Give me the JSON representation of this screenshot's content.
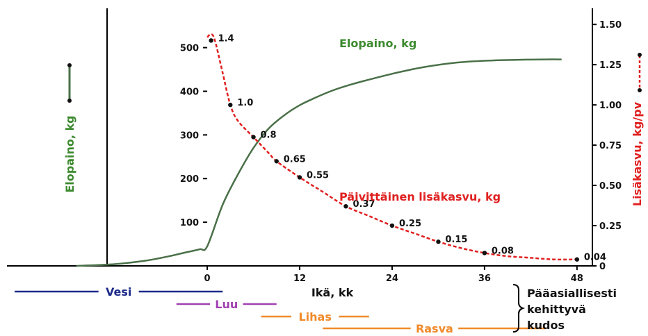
{
  "chart_data": {
    "type": "line",
    "xlabel": "Ikä, kk",
    "ylabel_left": "Elopaino, kg",
    "ylabel_right": "Lisäkasvu, kg/pv",
    "xlim": [
      -26,
      50
    ],
    "ylim_left": [
      0,
      590
    ],
    "ylim_right": [
      0,
      1.6
    ],
    "x_ticks": [
      0,
      12,
      24,
      36,
      48
    ],
    "y_left_ticks": [
      100,
      200,
      300,
      400,
      500
    ],
    "y_right_ticks": [
      0,
      0.25,
      0.5,
      0.75,
      1.0,
      1.25,
      1.5
    ],
    "y_right_tick_labels": [
      "0",
      "0.25",
      "0.50",
      "0.75",
      "1.00",
      "1.25",
      "1.50"
    ],
    "series": [
      {
        "name": "Elopaino, kg",
        "axis": "left",
        "color": "#4a7048",
        "x": [
          -17,
          -12,
          -8,
          -5,
          -3,
          -1,
          0,
          2,
          4,
          6,
          8,
          10,
          12,
          14,
          16,
          18,
          20,
          24,
          28,
          32,
          36,
          40,
          44,
          46
        ],
        "values": [
          0,
          4,
          12,
          22,
          30,
          38,
          45,
          140,
          210,
          270,
          315,
          345,
          368,
          385,
          400,
          412,
          422,
          440,
          455,
          465,
          470,
          472,
          473,
          473
        ]
      },
      {
        "name": "Päivittäinen lisäkasvu, kg",
        "axis": "right",
        "color": "#e02020",
        "x": [
          0,
          0.5,
          1,
          2,
          3,
          4,
          6,
          8,
          9,
          12,
          15,
          18,
          21,
          24,
          27,
          30,
          33,
          36,
          39,
          42,
          45,
          48
        ],
        "values": [
          1.42,
          1.44,
          1.4,
          1.2,
          1.0,
          0.9,
          0.8,
          0.7,
          0.65,
          0.55,
          0.46,
          0.37,
          0.31,
          0.25,
          0.2,
          0.15,
          0.11,
          0.08,
          0.06,
          0.05,
          0.04,
          0.04
        ]
      }
    ],
    "point_labels": [
      {
        "x": 0.5,
        "y": 1.4,
        "label": "1.4"
      },
      {
        "x": 3,
        "y": 1.0,
        "label": "1.0"
      },
      {
        "x": 6,
        "y": 0.8,
        "label": "0.8"
      },
      {
        "x": 9,
        "y": 0.65,
        "label": "0.65"
      },
      {
        "x": 12,
        "y": 0.55,
        "label": "0.55"
      },
      {
        "x": 18,
        "y": 0.37,
        "label": "0.37"
      },
      {
        "x": 24,
        "y": 0.25,
        "label": "0.25"
      },
      {
        "x": 30,
        "y": 0.15,
        "label": "0.15"
      },
      {
        "x": 36,
        "y": 0.08,
        "label": "0.08"
      },
      {
        "x": 48,
        "y": 0.04,
        "label": "0.04"
      }
    ],
    "tissue_label": "Pääasiallisesti kehittyvä kudos",
    "tissue_label_lines": [
      "Pääasiallisesti",
      "kehittyvä",
      "kudos"
    ],
    "tissues": [
      {
        "name": "Vesi",
        "color": "#1c2a8a",
        "x_start": -25,
        "x_end": 2
      },
      {
        "name": "Luu",
        "color": "#a040b0",
        "x_start": -4,
        "x_end": 9
      },
      {
        "name": "Lihas",
        "color": "#f08a2a",
        "x_start": 7,
        "x_end": 21
      },
      {
        "name": "Rasva",
        "color": "#f08a2a",
        "x_start": 15,
        "x_end": 44
      }
    ]
  }
}
